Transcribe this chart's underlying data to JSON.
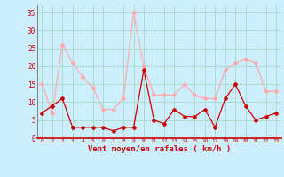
{
  "x": [
    0,
    1,
    2,
    3,
    4,
    5,
    6,
    7,
    8,
    9,
    10,
    11,
    12,
    13,
    14,
    15,
    16,
    17,
    18,
    19,
    20,
    21,
    22,
    23
  ],
  "rafales": [
    15,
    7,
    26,
    21,
    17,
    14,
    8,
    8,
    11,
    35,
    20,
    12,
    12,
    12,
    15,
    12,
    11,
    11,
    19,
    21,
    22,
    21,
    13,
    13
  ],
  "moyen": [
    7,
    9,
    11,
    3,
    3,
    3,
    3,
    2,
    3,
    3,
    19,
    5,
    4,
    8,
    6,
    6,
    8,
    3,
    11,
    15,
    9,
    5,
    6,
    7
  ],
  "color_rafales": "#ffaaaa",
  "color_moyen": "#cc0000",
  "bg_color": "#cceeff",
  "grid_color": "#aaddcc",
  "xlabel": "Vent moyen/en rafales ( km/h )",
  "xlabel_color": "#cc0000",
  "tick_color": "#cc0000",
  "ylim": [
    0,
    37
  ],
  "yticks": [
    0,
    5,
    10,
    15,
    20,
    25,
    30,
    35
  ],
  "xlim": [
    -0.5,
    23.5
  ],
  "marker": "D",
  "markersize": 2,
  "linewidth": 0.9
}
